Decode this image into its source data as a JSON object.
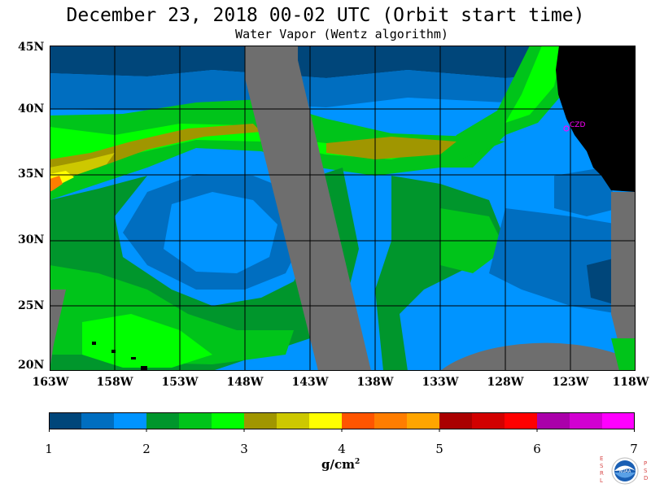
{
  "title": "December 23, 2018  00-02 UTC  (Orbit start time)",
  "subtitle": "Water Vapor (Wentz algorithm)",
  "map": {
    "lat_labels": [
      "45N",
      "40N",
      "35N",
      "30N",
      "25N",
      "20N"
    ],
    "lon_labels": [
      "163W",
      "158W",
      "153W",
      "148W",
      "143W",
      "138W",
      "133W",
      "128W",
      "123W",
      "118W"
    ],
    "station_label": "CZD",
    "no_data_color": "#6e6e6e",
    "land_color": "#000000",
    "station_color": "#ff00ff"
  },
  "colorbar": {
    "tick_labels": [
      "1",
      "2",
      "3",
      "4",
      "5",
      "6",
      "7"
    ],
    "units": "g/cm",
    "units_exp": "2",
    "range": [
      1,
      7
    ],
    "colors": [
      "#00467a",
      "#006ec0",
      "#0094ff",
      "#00962c",
      "#00c41a",
      "#00ff00",
      "#a09600",
      "#cdc800",
      "#ffff00",
      "#ff5500",
      "#ff7d00",
      "#ffa500",
      "#aa0000",
      "#d20000",
      "#ff0000",
      "#aa00aa",
      "#d200d2",
      "#ff00ff"
    ]
  },
  "logo": {
    "left_text": "ESRL",
    "right_text": "PSD",
    "name": "NOAA"
  }
}
